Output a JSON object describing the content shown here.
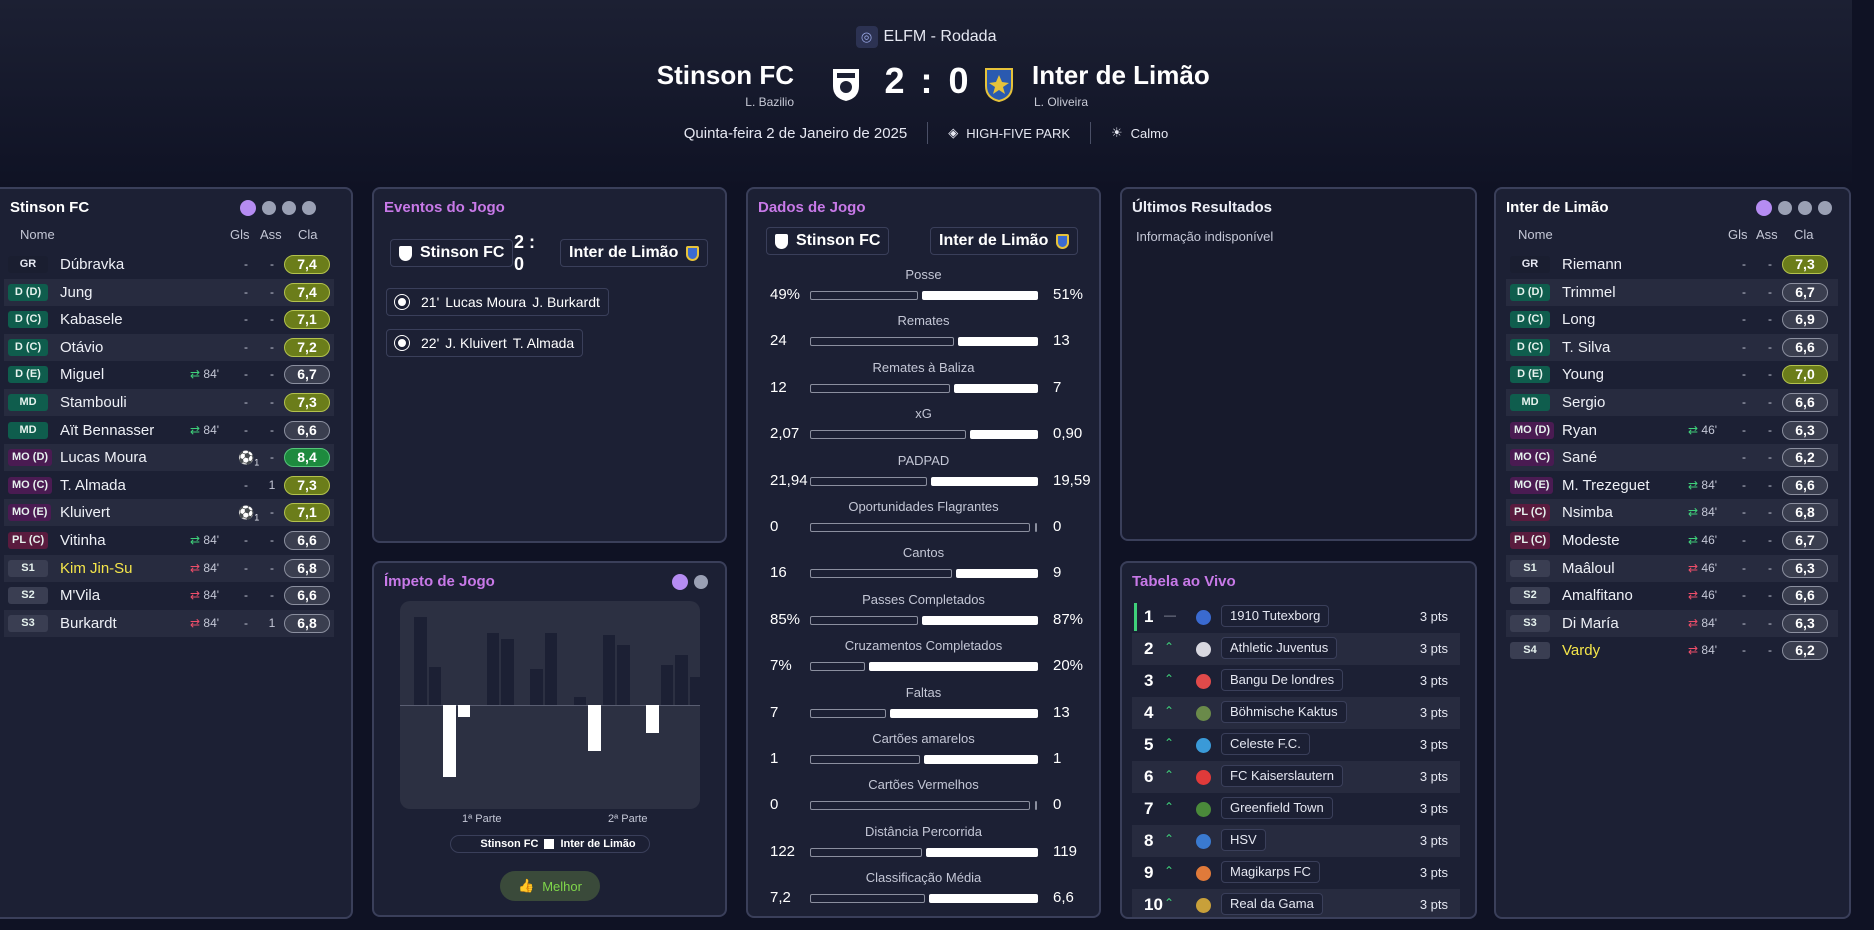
{
  "header": {
    "competition": "ELFM - Rodada",
    "home": {
      "name": "Stinson FC",
      "coach": "L. Bazilio"
    },
    "away": {
      "name": "Inter de Limão",
      "coach": "L. Oliveira"
    },
    "score": "2 : 0",
    "date": "Quinta-feira 2 de Janeiro de 2025",
    "stadium": "HIGH-FIVE PARK",
    "weather": "Calmo"
  },
  "lineup_headers": {
    "name": "Nome",
    "goals": "Gls",
    "assists": "Ass",
    "rating": "Cla"
  },
  "home_lineup": {
    "title": "Stinson FC",
    "players": [
      {
        "pos": "GR",
        "cls": "gk",
        "name": "Dúbravka",
        "sub": "",
        "g": "-",
        "a": "-",
        "r": "7,4",
        "rc": "y"
      },
      {
        "pos": "D (D)",
        "cls": "d",
        "name": "Jung",
        "sub": "",
        "g": "-",
        "a": "-",
        "r": "7,4",
        "rc": "y"
      },
      {
        "pos": "D (C)",
        "cls": "d",
        "name": "Kabasele",
        "sub": "",
        "g": "-",
        "a": "-",
        "r": "7,1",
        "rc": "y"
      },
      {
        "pos": "D (C)",
        "cls": "d",
        "name": "Otávio",
        "sub": "",
        "g": "-",
        "a": "-",
        "r": "7,2",
        "rc": "y"
      },
      {
        "pos": "D (E)",
        "cls": "d",
        "name": "Miguel",
        "sub": "84'",
        "subdir": "in",
        "g": "-",
        "a": "-",
        "r": "6,7",
        "rc": ""
      },
      {
        "pos": "MD",
        "cls": "md",
        "name": "Stambouli",
        "sub": "",
        "g": "-",
        "a": "-",
        "r": "7,3",
        "rc": "y"
      },
      {
        "pos": "MD",
        "cls": "md",
        "name": "Aït Bennasser",
        "sub": "84'",
        "subdir": "in",
        "g": "-",
        "a": "-",
        "r": "6,6",
        "rc": ""
      },
      {
        "pos": "MO (D)",
        "cls": "mo",
        "name": "Lucas Moura",
        "sub": "",
        "goal": "1",
        "g": "",
        "a": "-",
        "r": "8,4",
        "rc": "g"
      },
      {
        "pos": "MO (C)",
        "cls": "mo",
        "name": "T. Almada",
        "sub": "",
        "g": "-",
        "a": "1",
        "r": "7,3",
        "rc": "y"
      },
      {
        "pos": "MO (E)",
        "cls": "mo",
        "name": "Kluivert",
        "sub": "",
        "goal": "1",
        "g": "",
        "a": "-",
        "r": "7,1",
        "rc": "y"
      },
      {
        "pos": "PL (C)",
        "cls": "pl",
        "name": "Vitinha",
        "sub": "84'",
        "subdir": "in",
        "g": "-",
        "a": "-",
        "r": "6,6",
        "rc": ""
      },
      {
        "pos": "S1",
        "cls": "s",
        "name": "Kim Jin-Su",
        "yellow": true,
        "sub": "84'",
        "subdir": "out",
        "g": "-",
        "a": "-",
        "r": "6,8",
        "rc": ""
      },
      {
        "pos": "S2",
        "cls": "s",
        "name": "M'Vila",
        "sub": "84'",
        "subdir": "out",
        "g": "-",
        "a": "-",
        "r": "6,6",
        "rc": ""
      },
      {
        "pos": "S3",
        "cls": "s",
        "name": "Burkardt",
        "sub": "84'",
        "subdir": "out",
        "g": "-",
        "a": "1",
        "r": "6,8",
        "rc": ""
      }
    ]
  },
  "away_lineup": {
    "title": "Inter de Limão",
    "players": [
      {
        "pos": "GR",
        "cls": "gk",
        "name": "Riemann",
        "sub": "",
        "g": "-",
        "a": "-",
        "r": "7,3",
        "rc": "y"
      },
      {
        "pos": "D (D)",
        "cls": "d",
        "name": "Trimmel",
        "sub": "",
        "g": "-",
        "a": "-",
        "r": "6,7",
        "rc": ""
      },
      {
        "pos": "D (C)",
        "cls": "d",
        "name": "Long",
        "sub": "",
        "g": "-",
        "a": "-",
        "r": "6,9",
        "rc": ""
      },
      {
        "pos": "D (C)",
        "cls": "d",
        "name": "T. Silva",
        "sub": "",
        "g": "-",
        "a": "-",
        "r": "6,6",
        "rc": ""
      },
      {
        "pos": "D (E)",
        "cls": "d",
        "name": "Young",
        "sub": "",
        "g": "-",
        "a": "-",
        "r": "7,0",
        "rc": "y"
      },
      {
        "pos": "MD",
        "cls": "md",
        "name": "Sergio",
        "sub": "",
        "g": "-",
        "a": "-",
        "r": "6,6",
        "rc": ""
      },
      {
        "pos": "MO (D)",
        "cls": "mo",
        "name": "Ryan",
        "sub": "46'",
        "subdir": "in",
        "g": "-",
        "a": "-",
        "r": "6,3",
        "rc": ""
      },
      {
        "pos": "MO (C)",
        "cls": "mo",
        "name": "Sané",
        "sub": "",
        "g": "-",
        "a": "-",
        "r": "6,2",
        "rc": ""
      },
      {
        "pos": "MO (E)",
        "cls": "mo",
        "name": "M. Trezeguet",
        "sub": "84'",
        "subdir": "in",
        "g": "-",
        "a": "-",
        "r": "6,6",
        "rc": ""
      },
      {
        "pos": "PL (C)",
        "cls": "pl",
        "name": "Nsimba",
        "sub": "84'",
        "subdir": "in",
        "g": "-",
        "a": "-",
        "r": "6,8",
        "rc": ""
      },
      {
        "pos": "PL (C)",
        "cls": "pl",
        "name": "Modeste",
        "sub": "46'",
        "subdir": "in",
        "g": "-",
        "a": "-",
        "r": "6,7",
        "rc": ""
      },
      {
        "pos": "S1",
        "cls": "s",
        "name": "Maâloul",
        "sub": "46'",
        "subdir": "out",
        "g": "-",
        "a": "-",
        "r": "6,3",
        "rc": ""
      },
      {
        "pos": "S2",
        "cls": "s",
        "name": "Amalfitano",
        "sub": "46'",
        "subdir": "out",
        "g": "-",
        "a": "-",
        "r": "6,6",
        "rc": ""
      },
      {
        "pos": "S3",
        "cls": "s",
        "name": "Di María",
        "sub": "84'",
        "subdir": "out",
        "g": "-",
        "a": "-",
        "r": "6,3",
        "rc": ""
      },
      {
        "pos": "S4",
        "cls": "s",
        "name": "Vardy",
        "yellow": true,
        "sub": "84'",
        "subdir": "out",
        "g": "-",
        "a": "-",
        "r": "6,2",
        "rc": ""
      }
    ]
  },
  "events": {
    "title": "Eventos do Jogo",
    "home": "Stinson FC",
    "away": "Inter de Limão",
    "score": "2 : 0",
    "items": [
      {
        "minute": "21'",
        "scorer": "Lucas Moura",
        "assist": "J. Burkardt"
      },
      {
        "minute": "22'",
        "scorer": "J. Kluivert",
        "assist": "T. Almada"
      }
    ]
  },
  "momentum": {
    "title": "Ímpeto de Jogo",
    "first_half": "1ª Parte",
    "second_half": "2ª Parte",
    "legend_home": "Stinson FC",
    "legend_away": "Inter de Limão",
    "like_label": "Melhor",
    "home_values": [
      88,
      38,
      0,
      0,
      0,
      72,
      66,
      0,
      36,
      72,
      0,
      8,
      0,
      70,
      60,
      0,
      0,
      40,
      50,
      28
    ],
    "away_values": [
      0,
      0,
      72,
      12,
      0,
      0,
      0,
      0,
      0,
      0,
      0,
      0,
      46,
      0,
      0,
      0,
      28,
      0,
      0,
      0
    ]
  },
  "stats": {
    "title": "Dados de Jogo",
    "home": "Stinson FC",
    "away": "Inter de Limão",
    "rows": [
      {
        "label": "Posse",
        "h": "49%",
        "a": "51%",
        "hf": 0.49,
        "af": 0.51
      },
      {
        "label": "Remates",
        "h": "24",
        "a": "13",
        "hf": 0.65,
        "af": 0.35
      },
      {
        "label": "Remates à Baliza",
        "h": "12",
        "a": "7",
        "hf": 0.63,
        "af": 0.37
      },
      {
        "label": "xG",
        "h": "2,07",
        "a": "0,90",
        "hf": 0.7,
        "af": 0.3
      },
      {
        "label": "PADPAD",
        "h": "21,94",
        "a": "19,59",
        "hf": 0.53,
        "af": 0.47
      },
      {
        "label": "Oportunidades Flagrantes",
        "h": "0",
        "a": "0",
        "hf": 0.0,
        "af": 0.02
      },
      {
        "label": "Cantos",
        "h": "16",
        "a": "9",
        "hf": 0.64,
        "af": 0.36
      },
      {
        "label": "Passes Completados",
        "h": "85%",
        "a": "87%",
        "hf": 0.49,
        "af": 0.51
      },
      {
        "label": "Cruzamentos Completados",
        "h": "7%",
        "a": "20%",
        "hf": 0.26,
        "af": 0.74
      },
      {
        "label": "Faltas",
        "h": "7",
        "a": "13",
        "hf": 0.35,
        "af": 0.65
      },
      {
        "label": "Cartões amarelos",
        "h": "1",
        "a": "1",
        "hf": 0.5,
        "af": 0.5
      },
      {
        "label": "Cartões Vermelhos",
        "h": "0",
        "a": "0",
        "hf": 0.0,
        "af": 0.02
      },
      {
        "label": "Distância Percorrida",
        "h": "122",
        "a": "119",
        "hf": 0.51,
        "af": 0.49
      },
      {
        "label": "Classificação Média",
        "h": "7,2",
        "a": "6,6",
        "hf": 0.52,
        "af": 0.48
      }
    ]
  },
  "last_results": {
    "title": "Últimos Resultados",
    "text": "Informação indisponível"
  },
  "live_table": {
    "title": "Tabela ao Vivo",
    "rows": [
      {
        "rank": "1",
        "move": "—",
        "same": true,
        "team": "1910 Tutexborg",
        "pts": "3 pts",
        "color": "#3a6ad0"
      },
      {
        "rank": "2",
        "move": "^",
        "team": "Athletic Juventus",
        "pts": "3 pts",
        "color": "#d8d8e0"
      },
      {
        "rank": "3",
        "move": "^",
        "team": "Bangu De londres",
        "pts": "3 pts",
        "color": "#e04a4a"
      },
      {
        "rank": "4",
        "move": "^",
        "team": "Böhmische Kaktus",
        "pts": "3 pts",
        "color": "#6a8a4a"
      },
      {
        "rank": "5",
        "move": "^",
        "team": "Celeste F.C.",
        "pts": "3 pts",
        "color": "#3a9ad8"
      },
      {
        "rank": "6",
        "move": "^",
        "team": "FC Kaiserslautern",
        "pts": "3 pts",
        "color": "#e03a3a"
      },
      {
        "rank": "7",
        "move": "^",
        "team": "Greenfield Town",
        "pts": "3 pts",
        "color": "#4a8a3a"
      },
      {
        "rank": "8",
        "move": "^",
        "team": "HSV",
        "pts": "3 pts",
        "color": "#3a7ad0"
      },
      {
        "rank": "9",
        "move": "^",
        "team": "Magikarps FC",
        "pts": "3 pts",
        "color": "#e07a3a"
      },
      {
        "rank": "10",
        "move": "^",
        "team": "Real da Gama",
        "pts": "3 pts",
        "color": "#c8a03a"
      }
    ]
  }
}
